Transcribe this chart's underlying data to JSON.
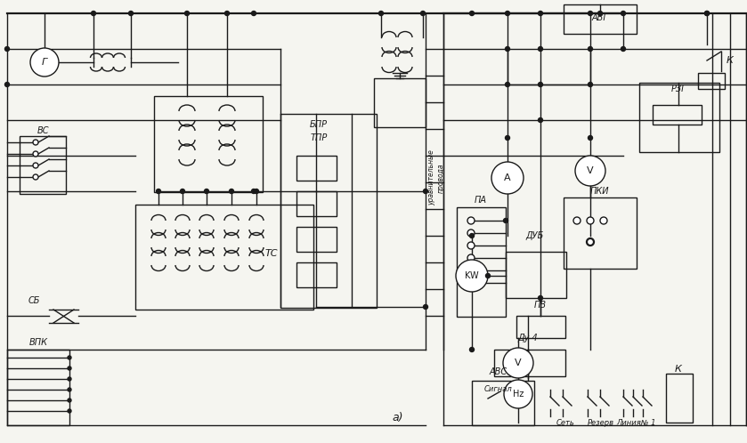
{
  "bg_color": "#f5f5f0",
  "line_color": "#1a1a1a",
  "lw": 1.0,
  "lw2": 1.6,
  "fig_w": 8.39,
  "fig_h": 4.98,
  "labels": {
    "G": "Г",
    "VS": "ВС",
    "SB": "СБ",
    "VPK": "ВПК",
    "BPR": "БПР",
    "TPR": "ТПР",
    "TC": "ТС",
    "AVG": "АВГ",
    "RZG": "РЗГ",
    "K": "К",
    "A": "A",
    "V": "V",
    "KW": "KW",
    "PKI": "ПКИ",
    "PA": "ПА",
    "DUB": "ДУБ",
    "PV": "ПВ",
    "DU4": "Ду 4",
    "HZ": "Hz",
    "AVS": "АВС",
    "Signal": "Сигнал",
    "Net": "Сеть",
    "Reserve": "Резерв",
    "Line1": "Линия№ 1",
    "a_label": "a)",
    "uprav": "уравнительные\nпровода"
  }
}
